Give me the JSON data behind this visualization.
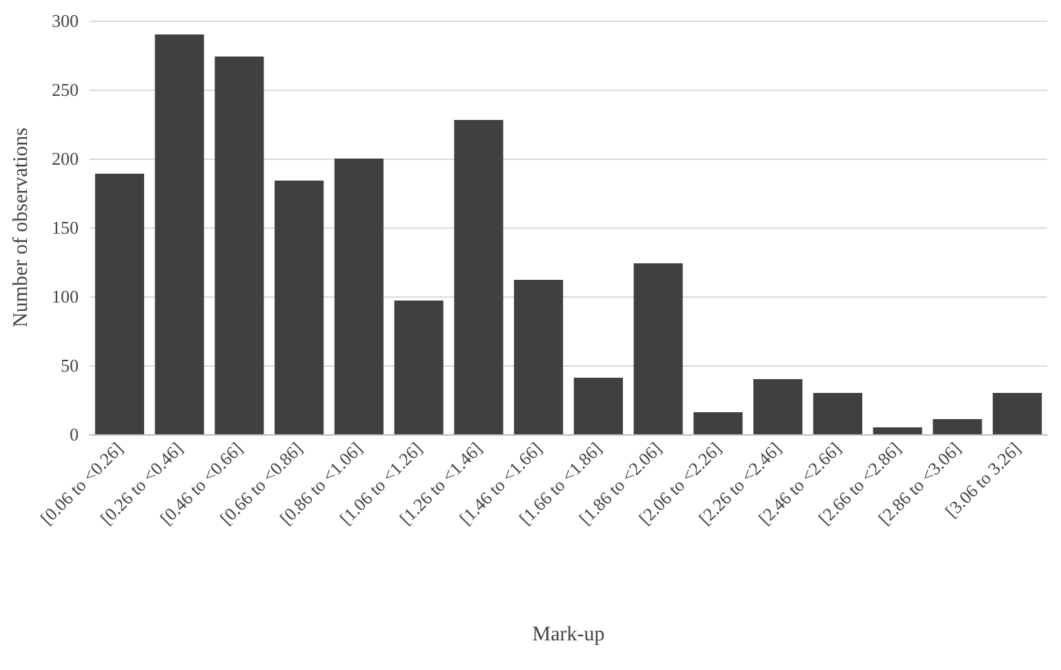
{
  "chart_data": {
    "type": "bar",
    "xlabel": "Mark-up",
    "ylabel": "Number of observations",
    "categories": [
      "[0.06 to <0.26]",
      "[0.26 to <0.46]",
      "[0.46 to <0.66]",
      "[0.66 to <0.86]",
      "[0.86 to <1.06]",
      "[1.06 to <1.26]",
      "[1.26 to <1.46]",
      "[1.46 to <1.66]",
      "[1.66 to <1.86]",
      "[1.86 to <2.06]",
      "[2.06 to <2.26]",
      "[2.26 to <2.46]",
      "[2.46 to <2.66]",
      "[2.66 to <2.86]",
      "[2.86 to <3.06]",
      "[3.06 to 3.26]"
    ],
    "values": [
      189,
      290,
      274,
      184,
      200,
      97,
      228,
      112,
      41,
      124,
      16,
      40,
      30,
      5,
      11,
      30
    ],
    "color": "#404040",
    "ylim": [
      0,
      300
    ],
    "yticks": [
      0,
      50,
      100,
      150,
      200,
      250,
      300
    ],
    "grid": "y"
  }
}
